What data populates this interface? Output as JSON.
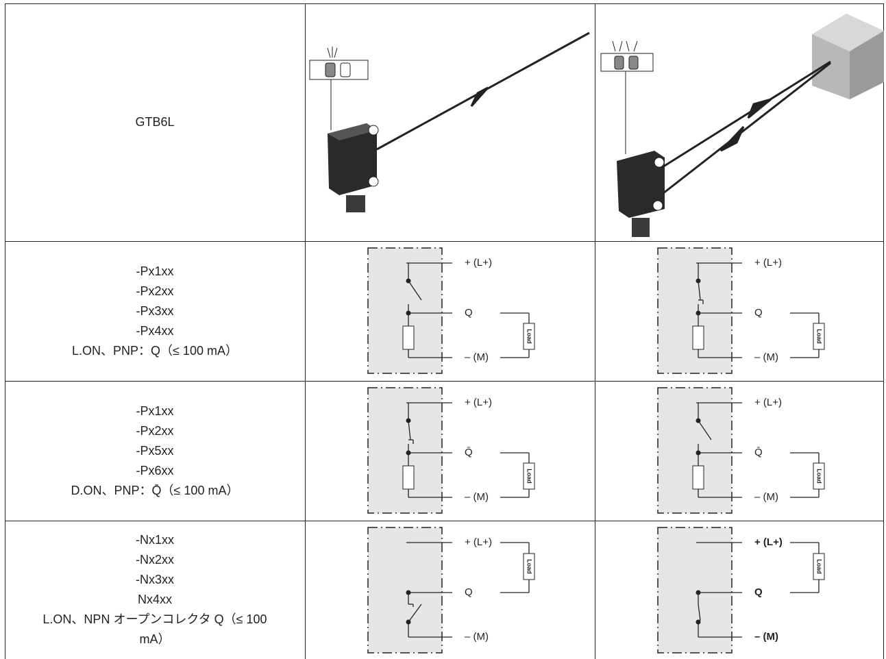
{
  "table": {
    "header_row": {
      "model": "GTB6L"
    },
    "rows": [
      {
        "lines": [
          "-Px1xx",
          "-Px2xx",
          "-Px3xx",
          "-Px4xx",
          "L.ON、PNP：Q（≤ 100 mA）"
        ],
        "circuits": [
          {
            "plus": "+ (L+)",
            "q": "Q",
            "minus": "– (M)",
            "load": "Load"
          },
          {
            "plus": "+ (L+)",
            "q": "Q",
            "minus": "– (M)",
            "load": "Load"
          }
        ]
      },
      {
        "lines": [
          "-Px1xx",
          "-Px2xx",
          "-Px5xx",
          "-Px6xx",
          "D.ON、PNP：Q̄（≤ 100 mA）"
        ],
        "circuits": [
          {
            "plus": "+ (L+)",
            "q": "Q̄",
            "minus": "– (M)",
            "load": "Load"
          },
          {
            "plus": "+ (L+)",
            "q": "Q̄",
            "minus": "– (M)",
            "load": "Load"
          }
        ]
      },
      {
        "lines": [
          "-Nx1xx",
          "-Nx2xx",
          "-Nx3xx",
          "Nx4xx",
          "L.ON、NPN オープンコレクタ Q（≤ 100 mA）"
        ],
        "circuits": [
          {
            "plus": "+ (L+)",
            "q": "Q",
            "minus": "– (M)",
            "load": "Load"
          },
          {
            "plus": "+ (L+)",
            "q": "Q",
            "minus": "– (M)",
            "load": "Load"
          }
        ]
      }
    ]
  }
}
